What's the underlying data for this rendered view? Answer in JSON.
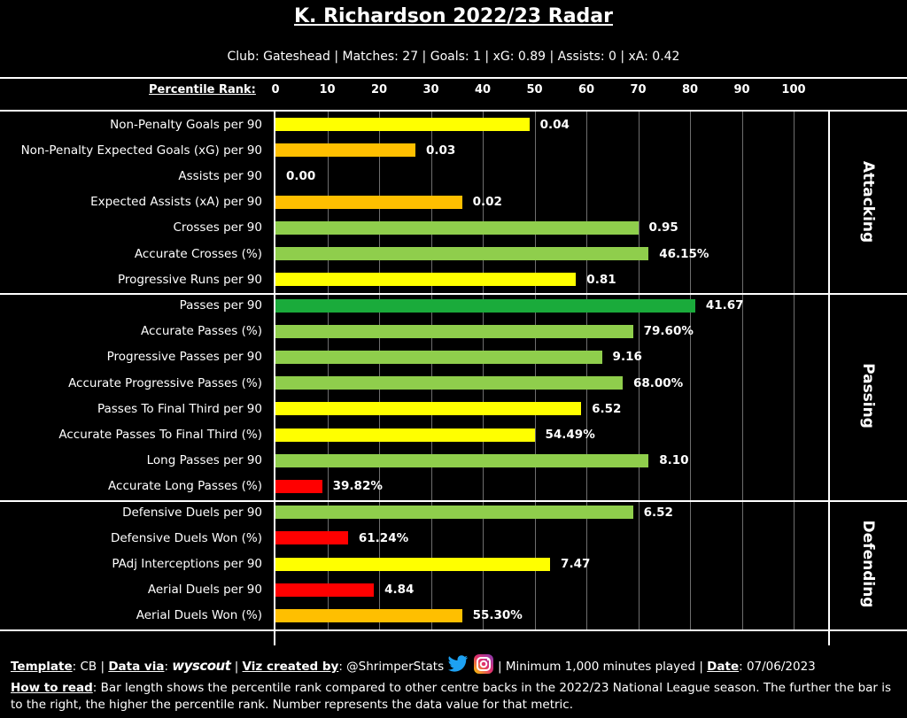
{
  "title": "K. Richardson 2022/23 Radar",
  "subtitle": "Club: Gateshead | Matches: 27 | Goals: 1 | xG: 0.89 | Assists: 0 | xA: 0.42",
  "colors": {
    "dark_green": "#1aab3b",
    "light_green": "#8fce4c",
    "yellow": "#ffff00",
    "orange": "#ffbf00",
    "red": "#ff0000"
  },
  "chart_data": {
    "type": "bar",
    "orientation": "horizontal",
    "xlabel": "Percentile Rank:",
    "xlim": [
      0,
      100
    ],
    "ticks": [
      "0",
      "10",
      "20",
      "30",
      "40",
      "50",
      "60",
      "70",
      "80",
      "90",
      "100"
    ],
    "sections": [
      {
        "name": "Attacking",
        "metrics": [
          {
            "label": "Non-Penalty Goals per 90",
            "percentile": 49,
            "value": "0.04",
            "color": "yellow"
          },
          {
            "label": "Non-Penalty Expected Goals (xG) per 90",
            "percentile": 27,
            "value": "0.03",
            "color": "orange"
          },
          {
            "label": "Assists per 90",
            "percentile": 0,
            "value": "0.00",
            "color": "red"
          },
          {
            "label": "Expected Assists (xA) per 90",
            "percentile": 36,
            "value": "0.02",
            "color": "orange"
          },
          {
            "label": "Crosses per 90",
            "percentile": 70,
            "value": "0.95",
            "color": "light_green"
          },
          {
            "label": "Accurate Crosses (%)",
            "percentile": 72,
            "value": "46.15%",
            "color": "light_green"
          },
          {
            "label": "Progressive Runs per 90",
            "percentile": 58,
            "value": "0.81",
            "color": "yellow"
          }
        ]
      },
      {
        "name": "Passing",
        "metrics": [
          {
            "label": "Passes per 90",
            "percentile": 81,
            "value": "41.67",
            "color": "dark_green"
          },
          {
            "label": "Accurate Passes (%)",
            "percentile": 69,
            "value": "79.60%",
            "color": "light_green"
          },
          {
            "label": "Progressive Passes per 90",
            "percentile": 63,
            "value": "9.16",
            "color": "light_green"
          },
          {
            "label": "Accurate Progressive Passes (%)",
            "percentile": 67,
            "value": "68.00%",
            "color": "light_green"
          },
          {
            "label": "Passes To Final Third per 90",
            "percentile": 59,
            "value": "6.52",
            "color": "yellow"
          },
          {
            "label": "Accurate Passes To Final Third (%)",
            "percentile": 50,
            "value": "54.49%",
            "color": "yellow"
          },
          {
            "label": "Long Passes per 90",
            "percentile": 72,
            "value": "8.10",
            "color": "light_green"
          },
          {
            "label": "Accurate Long Passes (%)",
            "percentile": 9,
            "value": "39.82%",
            "color": "red"
          }
        ]
      },
      {
        "name": "Defending",
        "metrics": [
          {
            "label": "Defensive Duels per 90",
            "percentile": 69,
            "value": "6.52",
            "color": "light_green"
          },
          {
            "label": "Defensive Duels Won (%)",
            "percentile": 14,
            "value": "61.24%",
            "color": "red"
          },
          {
            "label": "PAdj Interceptions per 90",
            "percentile": 53,
            "value": "7.47",
            "color": "yellow"
          },
          {
            "label": "Aerial Duels per 90",
            "percentile": 19,
            "value": "4.84",
            "color": "red"
          },
          {
            "label": "Aerial Duels Won (%)",
            "percentile": 36,
            "value": "55.30%",
            "color": "orange"
          }
        ]
      }
    ]
  },
  "footer": {
    "template_label": "Template",
    "template_value": ": CB | ",
    "data_via_label": "Data via",
    "data_via_sep": ": ",
    "wyscout_logo_text": "wyscout",
    "viz_label": "Viz created by",
    "viz_value": ": @ShrimperStats",
    "twitter_icon": "twitter-icon",
    "instagram_icon": "instagram-icon",
    "minimum_text": " | Minimum 1,000 minutes played | ",
    "date_label": "Date",
    "date_value": ": 07/06/2023",
    "howto_label": "How to read",
    "howto_text": ": Bar length shows the percentile rank compared to other centre backs in the 2022/23 National League season. The further the bar is to the right, the higher the percentile rank. Number represents the data value for that metric."
  }
}
